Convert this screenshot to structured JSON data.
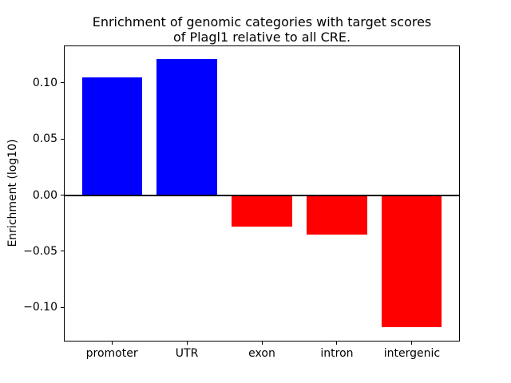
{
  "figure": {
    "background_color": "#ffffff",
    "text_color": "#000000"
  },
  "chart_data": {
    "type": "bar",
    "title": "Enrichment of genomic categories with target scores\nof Plagl1 relative to all CRE.",
    "xlabel": "",
    "ylabel": "Enrichment (log10)",
    "categories": [
      "promoter",
      "UTR",
      "exon",
      "intron",
      "intergenic"
    ],
    "values": [
      0.105,
      0.121,
      -0.028,
      -0.035,
      -0.118
    ],
    "positive_color": "#0000ff",
    "negative_color": "#ff0000",
    "yticks": [
      0.1,
      0.05,
      0.0,
      -0.05,
      -0.1
    ],
    "ytick_labels": [
      "0.10",
      "0.05",
      "0.00",
      "−0.05",
      "−0.10"
    ],
    "ylim": [
      -0.13,
      0.133
    ],
    "xlim": [
      -0.64,
      4.64
    ],
    "bar_width": 0.8,
    "grid": false,
    "legend": "none",
    "zero_line": true,
    "zero_line_color": "#000000"
  }
}
